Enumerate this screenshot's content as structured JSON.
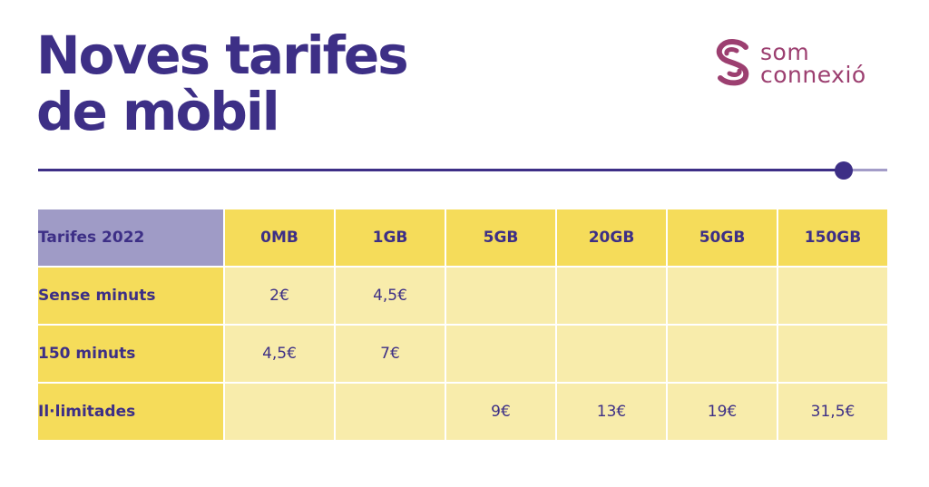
{
  "title": {
    "line1": "Noves tarifes",
    "line2": "de mòbil"
  },
  "logo": {
    "line1": "som",
    "line2": "connexió",
    "icon": "som-connexio-logo-icon"
  },
  "colors": {
    "primary": "#3d2f86",
    "logo": "#9c3f70",
    "header_yellow": "#f5dc5a",
    "cell_yellow": "#f8ecab",
    "corner_purple": "#9f9bc6"
  },
  "table": {
    "corner_label": "Tarifes 2022",
    "columns": [
      "0MB",
      "1GB",
      "5GB",
      "20GB",
      "50GB",
      "150GB"
    ],
    "rows": [
      {
        "label": "Sense minuts",
        "values": [
          "2€",
          "4,5€",
          "",
          "",
          "",
          ""
        ]
      },
      {
        "label": "150 minuts",
        "values": [
          "4,5€",
          "7€",
          "",
          "",
          "",
          ""
        ]
      },
      {
        "label": "Il·limitades",
        "values": [
          "",
          "",
          "9€",
          "13€",
          "19€",
          "31,5€"
        ]
      }
    ]
  }
}
